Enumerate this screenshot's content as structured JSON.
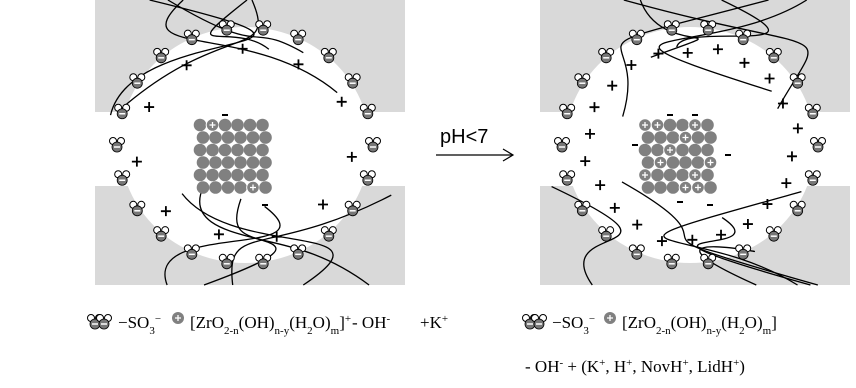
{
  "arrow_label": "pH<7",
  "legend_left": [
    [
      {
        "text": "−SO"
      },
      {
        "sub": "3"
      },
      {
        "sup": "−"
      }
    ],
    [
      {
        "text": "[ZrO"
      },
      {
        "sub": "2-n"
      },
      {
        "text": "(OH)"
      },
      {
        "sub": "n-y"
      },
      {
        "text": "(H"
      },
      {
        "sub": "2"
      },
      {
        "text": "O)"
      },
      {
        "sub": "m"
      },
      {
        "text": "]"
      },
      {
        "sup": "+"
      }
    ],
    [
      {
        "text": "- OH"
      },
      {
        "sup": "-"
      }
    ],
    [
      {
        "text": "+K"
      },
      {
        "sup": "+"
      }
    ]
  ],
  "legend_right": [
    [
      {
        "text": "−SO"
      },
      {
        "sub": "3"
      },
      {
        "sup": "−"
      }
    ],
    [
      {
        "text": "[ZrO"
      },
      {
        "sub": "2-n"
      },
      {
        "text": "(OH)"
      },
      {
        "sub": "n-y"
      },
      {
        "text": "(H"
      },
      {
        "sub": "2"
      },
      {
        "text": "O)"
      },
      {
        "sub": "m"
      },
      {
        "text": "]"
      }
    ],
    [
      {
        "text": "- OH"
      },
      {
        "sup": "-"
      },
      {
        "text": " + (K"
      },
      {
        "sup": "+"
      },
      {
        "text": ", H"
      },
      {
        "sup": "+"
      },
      {
        "text": ", NovH"
      },
      {
        "sup": "+"
      },
      {
        "text": ", LidH"
      },
      {
        "sup": "+"
      },
      {
        "text": ")"
      }
    ]
  ]
}
